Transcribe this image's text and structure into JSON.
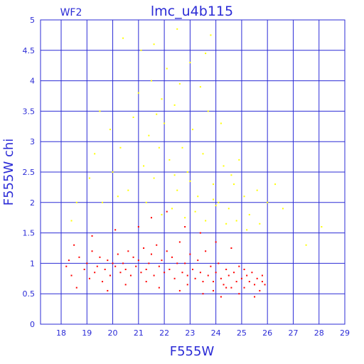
{
  "chart_data": {
    "type": "scatter",
    "title": "lmc_u4b115",
    "panel_label": "WF2",
    "xlabel": "F555W",
    "ylabel": "F555W chi",
    "xlim": [
      17.2,
      29.0
    ],
    "ylim": [
      0,
      5
    ],
    "x_ticks": [
      18,
      19,
      20,
      21,
      22,
      23,
      24,
      25,
      26,
      27,
      28,
      29
    ],
    "y_ticks": [
      0,
      0.5,
      1,
      1.5,
      2,
      2.5,
      3,
      3.5,
      4,
      4.5,
      5
    ],
    "grid": true,
    "series": [
      {
        "color": "#ff0000",
        "points": [
          [
            18.2,
            0.95
          ],
          [
            18.3,
            1.05
          ],
          [
            18.4,
            0.8
          ],
          [
            18.6,
            0.6
          ],
          [
            18.7,
            1.1
          ],
          [
            18.9,
            0.9
          ],
          [
            19.0,
            1.0
          ],
          [
            19.1,
            0.75
          ],
          [
            19.2,
            1.2
          ],
          [
            19.3,
            0.85
          ],
          [
            19.4,
            0.95
          ],
          [
            19.5,
            1.1
          ],
          [
            19.6,
            0.7
          ],
          [
            19.7,
            0.9
          ],
          [
            19.8,
            1.05
          ],
          [
            19.9,
            0.8
          ],
          [
            20.0,
            1.0
          ],
          [
            20.1,
            0.95
          ],
          [
            20.2,
            1.15
          ],
          [
            20.3,
            0.85
          ],
          [
            20.4,
            1.0
          ],
          [
            20.5,
            0.9
          ],
          [
            20.6,
            1.2
          ],
          [
            20.7,
            0.8
          ],
          [
            20.8,
            1.1
          ],
          [
            20.9,
            0.95
          ],
          [
            21.0,
            1.05
          ],
          [
            21.1,
            0.85
          ],
          [
            21.2,
            1.25
          ],
          [
            21.3,
            0.9
          ],
          [
            21.4,
            1.0
          ],
          [
            21.5,
            1.15
          ],
          [
            21.6,
            0.8
          ],
          [
            21.7,
            1.3
          ],
          [
            21.8,
            0.95
          ],
          [
            21.9,
            1.05
          ],
          [
            22.0,
            0.85
          ],
          [
            22.1,
            1.2
          ],
          [
            22.2,
            0.9
          ],
          [
            22.3,
            1.1
          ],
          [
            22.4,
            0.75
          ],
          [
            22.5,
            1.0
          ],
          [
            22.6,
            1.35
          ],
          [
            22.7,
            0.85
          ],
          [
            22.8,
            1.0
          ],
          [
            22.9,
            0.8
          ],
          [
            23.0,
            1.15
          ],
          [
            23.1,
            0.9
          ],
          [
            23.2,
            0.75
          ],
          [
            23.3,
            1.05
          ],
          [
            23.4,
            0.85
          ],
          [
            23.5,
            0.7
          ],
          [
            23.6,
            1.2
          ],
          [
            23.7,
            0.8
          ],
          [
            23.8,
            0.95
          ],
          [
            23.9,
            0.7
          ],
          [
            24.0,
            0.85
          ],
          [
            24.1,
            1.0
          ],
          [
            24.2,
            0.75
          ],
          [
            24.3,
            0.65
          ],
          [
            24.4,
            0.9
          ],
          [
            24.5,
            0.8
          ],
          [
            24.6,
            0.6
          ],
          [
            24.7,
            0.85
          ],
          [
            24.8,
            0.7
          ],
          [
            24.9,
            0.95
          ],
          [
            25.0,
            0.75
          ],
          [
            25.1,
            0.6
          ],
          [
            25.2,
            0.8
          ],
          [
            25.3,
            0.7
          ],
          [
            25.4,
            0.85
          ],
          [
            25.5,
            0.65
          ],
          [
            25.6,
            0.75
          ],
          [
            25.7,
            0.55
          ],
          [
            25.8,
            0.7
          ],
          [
            25.9,
            0.65
          ],
          [
            18.5,
            1.3
          ],
          [
            19.2,
            1.45
          ],
          [
            20.1,
            1.55
          ],
          [
            21.0,
            1.6
          ],
          [
            21.5,
            1.75
          ],
          [
            22.1,
            1.85
          ],
          [
            22.8,
            1.6
          ],
          [
            23.4,
            1.5
          ],
          [
            24.0,
            1.35
          ],
          [
            24.6,
            1.25
          ],
          [
            20.5,
            0.65
          ],
          [
            21.8,
            0.6
          ],
          [
            22.6,
            0.55
          ],
          [
            23.5,
            0.5
          ],
          [
            24.2,
            0.45
          ],
          [
            24.9,
            0.5
          ],
          [
            25.5,
            0.45
          ],
          [
            19.8,
            0.55
          ],
          [
            21.3,
            0.7
          ],
          [
            22.9,
            0.65
          ],
          [
            23.9,
            0.55
          ],
          [
            24.4,
            0.6
          ],
          [
            25.1,
            0.9
          ],
          [
            25.8,
            0.8
          ]
        ]
      },
      {
        "color": "#ffff00",
        "points": [
          [
            20.4,
            4.7
          ],
          [
            21.1,
            4.5
          ],
          [
            21.6,
            4.6
          ],
          [
            22.5,
            4.85
          ],
          [
            23.8,
            4.75
          ],
          [
            19.5,
            3.5
          ],
          [
            19.9,
            3.2
          ],
          [
            20.3,
            2.9
          ],
          [
            20.8,
            3.4
          ],
          [
            21.0,
            3.8
          ],
          [
            21.2,
            2.6
          ],
          [
            21.4,
            3.1
          ],
          [
            21.6,
            2.4
          ],
          [
            21.8,
            2.9
          ],
          [
            22.0,
            3.3
          ],
          [
            22.2,
            2.7
          ],
          [
            22.4,
            3.6
          ],
          [
            22.5,
            2.2
          ],
          [
            22.7,
            2.9
          ],
          [
            22.9,
            2.5
          ],
          [
            23.1,
            3.2
          ],
          [
            23.3,
            2.1
          ],
          [
            23.5,
            2.8
          ],
          [
            23.7,
            3.5
          ],
          [
            23.9,
            2.3
          ],
          [
            24.1,
            2.0
          ],
          [
            24.3,
            2.6
          ],
          [
            24.5,
            1.9
          ],
          [
            24.7,
            2.3
          ],
          [
            24.9,
            2.7
          ],
          [
            25.1,
            2.1
          ],
          [
            25.3,
            1.8
          ],
          [
            25.6,
            2.2
          ],
          [
            26.0,
            2.0
          ],
          [
            26.3,
            2.3
          ],
          [
            26.6,
            1.9
          ],
          [
            27.5,
            1.3
          ],
          [
            28.1,
            1.6
          ],
          [
            19.1,
            2.4
          ],
          [
            19.3,
            2.8
          ],
          [
            19.6,
            2.0
          ],
          [
            20.0,
            2.5
          ],
          [
            20.6,
            2.2
          ],
          [
            21.3,
            2.0
          ],
          [
            21.9,
            1.8
          ],
          [
            22.3,
            1.9
          ],
          [
            22.8,
            1.75
          ],
          [
            23.2,
            1.85
          ],
          [
            23.6,
            1.7
          ],
          [
            24.0,
            1.95
          ],
          [
            24.4,
            1.65
          ],
          [
            24.8,
            1.7
          ],
          [
            25.2,
            1.55
          ],
          [
            25.7,
            1.65
          ],
          [
            18.4,
            1.7
          ],
          [
            18.6,
            2.0
          ],
          [
            21.5,
            4.0
          ],
          [
            22.1,
            4.2
          ],
          [
            23.0,
            4.3
          ],
          [
            23.4,
            3.9
          ],
          [
            22.6,
            3.95
          ],
          [
            21.9,
            3.7
          ],
          [
            21.7,
            3.45
          ],
          [
            23.6,
            4.45
          ],
          [
            24.2,
            3.3
          ],
          [
            20.2,
            2.1
          ],
          [
            22.4,
            2.45
          ],
          [
            23.0,
            2.35
          ],
          [
            23.9,
            2.05
          ],
          [
            24.6,
            2.45
          ]
        ]
      }
    ]
  }
}
